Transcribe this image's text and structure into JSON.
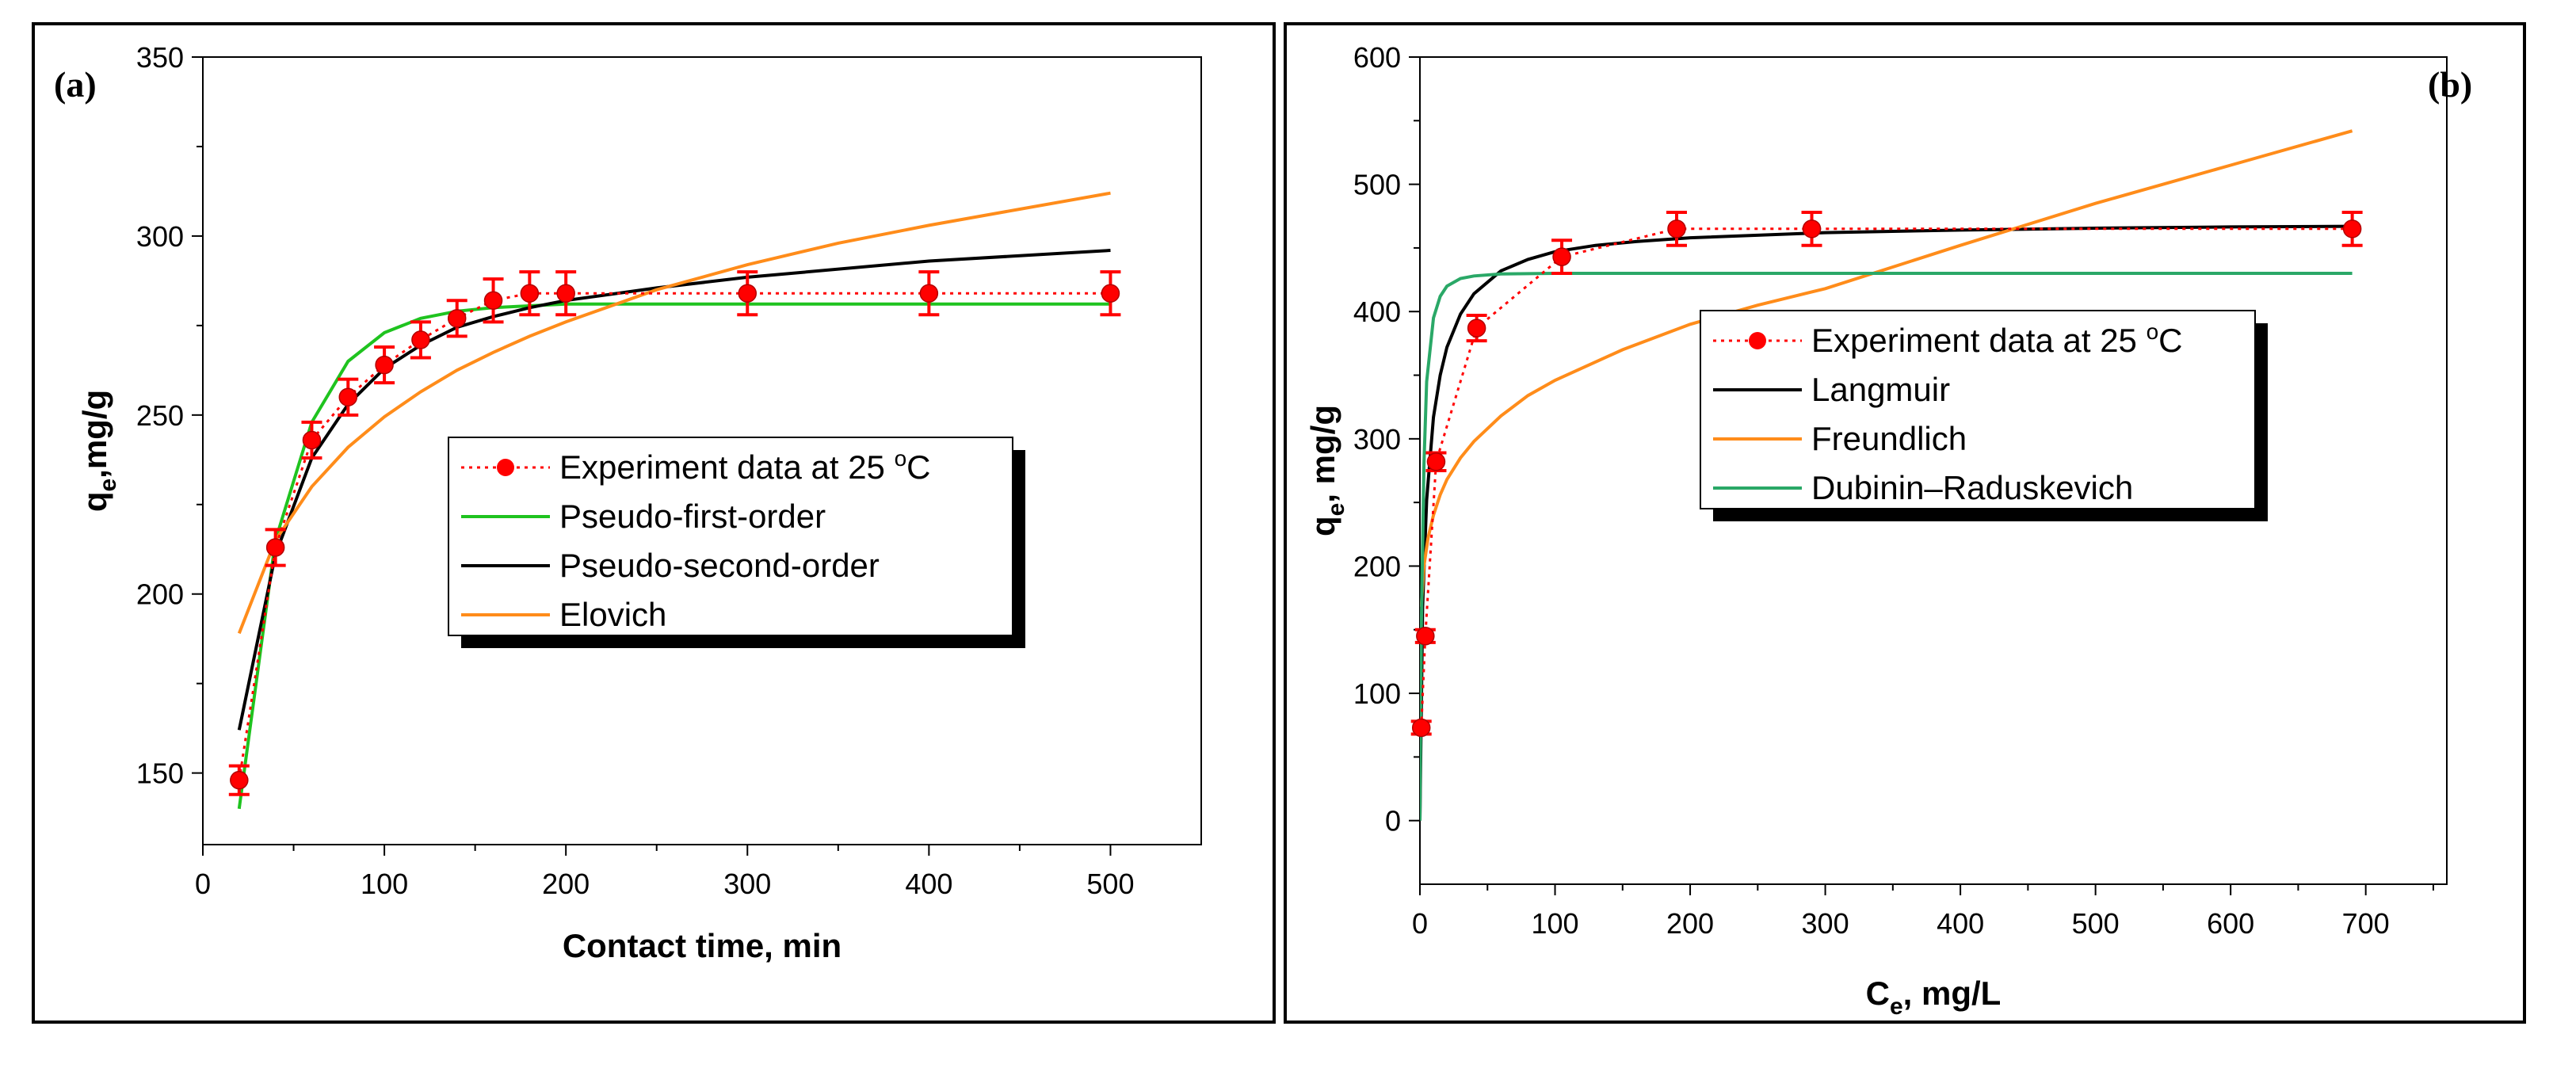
{
  "chart_data": [
    {
      "type": "line",
      "panel_label": "(a)",
      "xlabel": "Contact time, min",
      "ylabel_main": "q",
      "ylabel_sub": "e",
      "ylabel_rest": ",mg/g",
      "xlim": [
        0,
        550
      ],
      "ylim": [
        130,
        350
      ],
      "x_ticks": [
        0,
        100,
        200,
        300,
        400,
        500
      ],
      "y_ticks": [
        150,
        200,
        250,
        300,
        350
      ],
      "grid": false,
      "legend_position": "center-right",
      "legend_title_suffix": "o",
      "legend_title_after": "C",
      "experiment": {
        "name": "Experiment data at 25 ",
        "color": "#ff0000",
        "x": [
          20,
          40,
          60,
          80,
          100,
          120,
          140,
          160,
          180,
          200,
          300,
          400,
          500
        ],
        "y": [
          148,
          213,
          243,
          255,
          264,
          271,
          277,
          282,
          284,
          284,
          284,
          284,
          284
        ],
        "err": [
          4,
          5,
          5,
          5,
          5,
          5,
          5,
          6,
          6,
          6,
          6,
          6,
          6
        ]
      },
      "series": [
        {
          "name": "Pseudo-first-order",
          "color": "#1fc31f",
          "x": [
            20,
            40,
            60,
            80,
            100,
            120,
            140,
            160,
            180,
            200,
            250,
            300,
            400,
            500
          ],
          "y": [
            140,
            215,
            248,
            265,
            273,
            277,
            279,
            280,
            280.5,
            281,
            281,
            281,
            281,
            281
          ]
        },
        {
          "name": "Pseudo-second-order",
          "color": "#000000",
          "x": [
            20,
            40,
            60,
            80,
            100,
            120,
            140,
            160,
            180,
            200,
            250,
            300,
            400,
            500
          ],
          "y": [
            162,
            211,
            238,
            253,
            263,
            269.5,
            274.5,
            277.5,
            280,
            282,
            285.5,
            288.5,
            293,
            296
          ]
        },
        {
          "name": "Elovich",
          "color": "#ff8c1a",
          "x": [
            20,
            40,
            60,
            80,
            100,
            120,
            140,
            160,
            180,
            200,
            250,
            300,
            350,
            400,
            450,
            500
          ],
          "y": [
            189,
            215,
            230,
            241,
            249.5,
            256.5,
            262.5,
            267.5,
            272,
            276,
            285,
            292,
            298,
            303,
            307.5,
            312
          ]
        }
      ]
    },
    {
      "type": "line",
      "panel_label": "(b)",
      "xlabel_main": "C",
      "xlabel_sub": "e",
      "xlabel_rest": ", mg/L",
      "ylabel_main": "q",
      "ylabel_sub": "e",
      "ylabel_rest": ", mg/g",
      "xlim": [
        0,
        760
      ],
      "ylim": [
        -50,
        600
      ],
      "x_ticks": [
        0,
        100,
        200,
        300,
        400,
        500,
        600,
        700
      ],
      "y_ticks": [
        0,
        100,
        200,
        300,
        400,
        500,
        600
      ],
      "grid": false,
      "legend_position": "center-right",
      "legend_title_suffix": "o",
      "legend_title_after": "C",
      "experiment": {
        "name": "Experiment data at 25 ",
        "color": "#ff0000",
        "x": [
          1,
          4,
          12,
          42,
          105,
          190,
          290,
          690
        ],
        "y": [
          73,
          145,
          282,
          387,
          443,
          465,
          465,
          465
        ],
        "err": [
          5,
          5,
          7,
          10,
          13,
          13,
          13,
          13
        ]
      },
      "series": [
        {
          "name": "Langmuir",
          "color": "#000000",
          "x": [
            0,
            2,
            5,
            10,
            15,
            20,
            30,
            40,
            60,
            80,
            100,
            130,
            160,
            200,
            300,
            400,
            500,
            600,
            690
          ],
          "y": [
            0,
            168,
            252,
            317,
            350,
            372,
            398,
            414,
            432,
            441,
            447,
            452,
            455,
            458,
            462,
            464,
            465.5,
            466.5,
            467
          ]
        },
        {
          "name": "Freundlich",
          "color": "#ff8c1a",
          "x": [
            1,
            3,
            6,
            10,
            15,
            20,
            30,
            40,
            60,
            80,
            100,
            150,
            200,
            250,
            300,
            400,
            500,
            600,
            690
          ],
          "y": [
            168,
            200,
            222,
            240,
            256,
            268,
            285,
            298,
            318,
            334,
            346,
            370,
            390,
            405,
            418,
            452,
            485,
            515,
            542
          ]
        },
        {
          "name": "Dubinin–Raduskevich",
          "color": "#2aa867",
          "x": [
            0,
            1,
            3,
            5,
            10,
            15,
            20,
            30,
            40,
            60,
            100,
            200,
            400,
            690
          ],
          "y": [
            0,
            150,
            280,
            345,
            395,
            412,
            420,
            426,
            428,
            429.5,
            430,
            430,
            430,
            430
          ]
        }
      ]
    }
  ]
}
